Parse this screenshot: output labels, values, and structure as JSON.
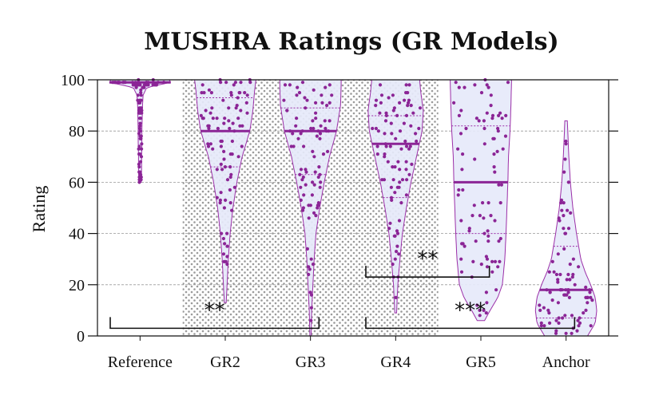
{
  "chart_data": {
    "type": "violin",
    "title": "MUSHRA Ratings (GR Models)",
    "xlabel": "",
    "ylabel": "Rating",
    "ylim": [
      0,
      100
    ],
    "yticks": [
      0,
      20,
      40,
      60,
      80,
      100
    ],
    "grid": "horizontal dashed",
    "categories": [
      "Reference",
      "GR2",
      "GR3",
      "GR4",
      "GR5",
      "Anchor"
    ],
    "colors": {
      "fill": "#e6e9fa",
      "edge": "#9b2fa8",
      "points": "#8b2596",
      "median": "#8b2596",
      "hatch_region": "#9a9a9a"
    },
    "hatched_categories": [
      "GR2",
      "GR3",
      "GR4"
    ],
    "series": [
      {
        "category": "Reference",
        "median": 99,
        "q1": 99,
        "q3": 100,
        "min": 60,
        "max": 100,
        "density": [
          [
            60,
            0.04
          ],
          [
            65,
            0.05
          ],
          [
            70,
            0.05
          ],
          [
            75,
            0.06
          ],
          [
            80,
            0.06
          ],
          [
            85,
            0.07
          ],
          [
            90,
            0.08
          ],
          [
            94,
            0.1
          ],
          [
            97,
            0.22
          ],
          [
            99,
            1.0
          ],
          [
            100,
            0.95
          ]
        ]
      },
      {
        "category": "GR2",
        "median": 80,
        "q1": 66,
        "q3": 93,
        "min": 13,
        "max": 100,
        "density": [
          [
            13,
            0.03
          ],
          [
            20,
            0.06
          ],
          [
            30,
            0.1
          ],
          [
            40,
            0.16
          ],
          [
            50,
            0.25
          ],
          [
            60,
            0.38
          ],
          [
            70,
            0.55
          ],
          [
            80,
            0.8
          ],
          [
            88,
            0.9
          ],
          [
            95,
            0.95
          ],
          [
            100,
            1.0
          ]
        ]
      },
      {
        "category": "GR3",
        "median": 80,
        "q1": 63,
        "q3": 89,
        "min": 0,
        "max": 100,
        "density": [
          [
            0,
            0.02
          ],
          [
            10,
            0.04
          ],
          [
            20,
            0.08
          ],
          [
            30,
            0.12
          ],
          [
            40,
            0.18
          ],
          [
            50,
            0.3
          ],
          [
            60,
            0.45
          ],
          [
            70,
            0.62
          ],
          [
            80,
            0.85
          ],
          [
            90,
            0.98
          ],
          [
            97,
            1.0
          ],
          [
            100,
            1.0
          ]
        ]
      },
      {
        "category": "GR4",
        "median": 75,
        "q1": 54,
        "q3": 86,
        "min": 9,
        "max": 100,
        "density": [
          [
            9,
            0.03
          ],
          [
            20,
            0.07
          ],
          [
            30,
            0.14
          ],
          [
            40,
            0.22
          ],
          [
            50,
            0.35
          ],
          [
            60,
            0.5
          ],
          [
            70,
            0.68
          ],
          [
            80,
            0.86
          ],
          [
            88,
            0.9
          ],
          [
            95,
            0.82
          ],
          [
            100,
            0.78
          ]
        ]
      },
      {
        "category": "GR5",
        "median": 60,
        "q1": 40,
        "q3": 82,
        "min": 6,
        "max": 100,
        "density": [
          [
            6,
            0.12
          ],
          [
            10,
            0.3
          ],
          [
            15,
            0.55
          ],
          [
            20,
            0.7
          ],
          [
            30,
            0.78
          ],
          [
            40,
            0.82
          ],
          [
            50,
            0.85
          ],
          [
            60,
            0.88
          ],
          [
            70,
            0.9
          ],
          [
            80,
            0.95
          ],
          [
            90,
            0.98
          ],
          [
            100,
            1.0
          ]
        ]
      },
      {
        "category": "Anchor",
        "median": 18,
        "q1": 7,
        "q3": 35,
        "min": 0,
        "max": 84,
        "density": [
          [
            0,
            0.7
          ],
          [
            5,
            0.95
          ],
          [
            10,
            1.0
          ],
          [
            15,
            0.95
          ],
          [
            20,
            0.8
          ],
          [
            25,
            0.62
          ],
          [
            30,
            0.48
          ],
          [
            40,
            0.34
          ],
          [
            50,
            0.22
          ],
          [
            60,
            0.14
          ],
          [
            70,
            0.09
          ],
          [
            84,
            0.04
          ]
        ]
      }
    ],
    "annotations": [
      {
        "text": "**",
        "compare": [
          "Reference",
          "GR3"
        ],
        "bracket_y": 3
      },
      {
        "text": "**",
        "compare": [
          "GR4",
          "GR5"
        ],
        "bracket_y": 23
      },
      {
        "text": "***",
        "compare": [
          "GR4",
          "Anchor"
        ],
        "bracket_y": 3
      }
    ]
  }
}
